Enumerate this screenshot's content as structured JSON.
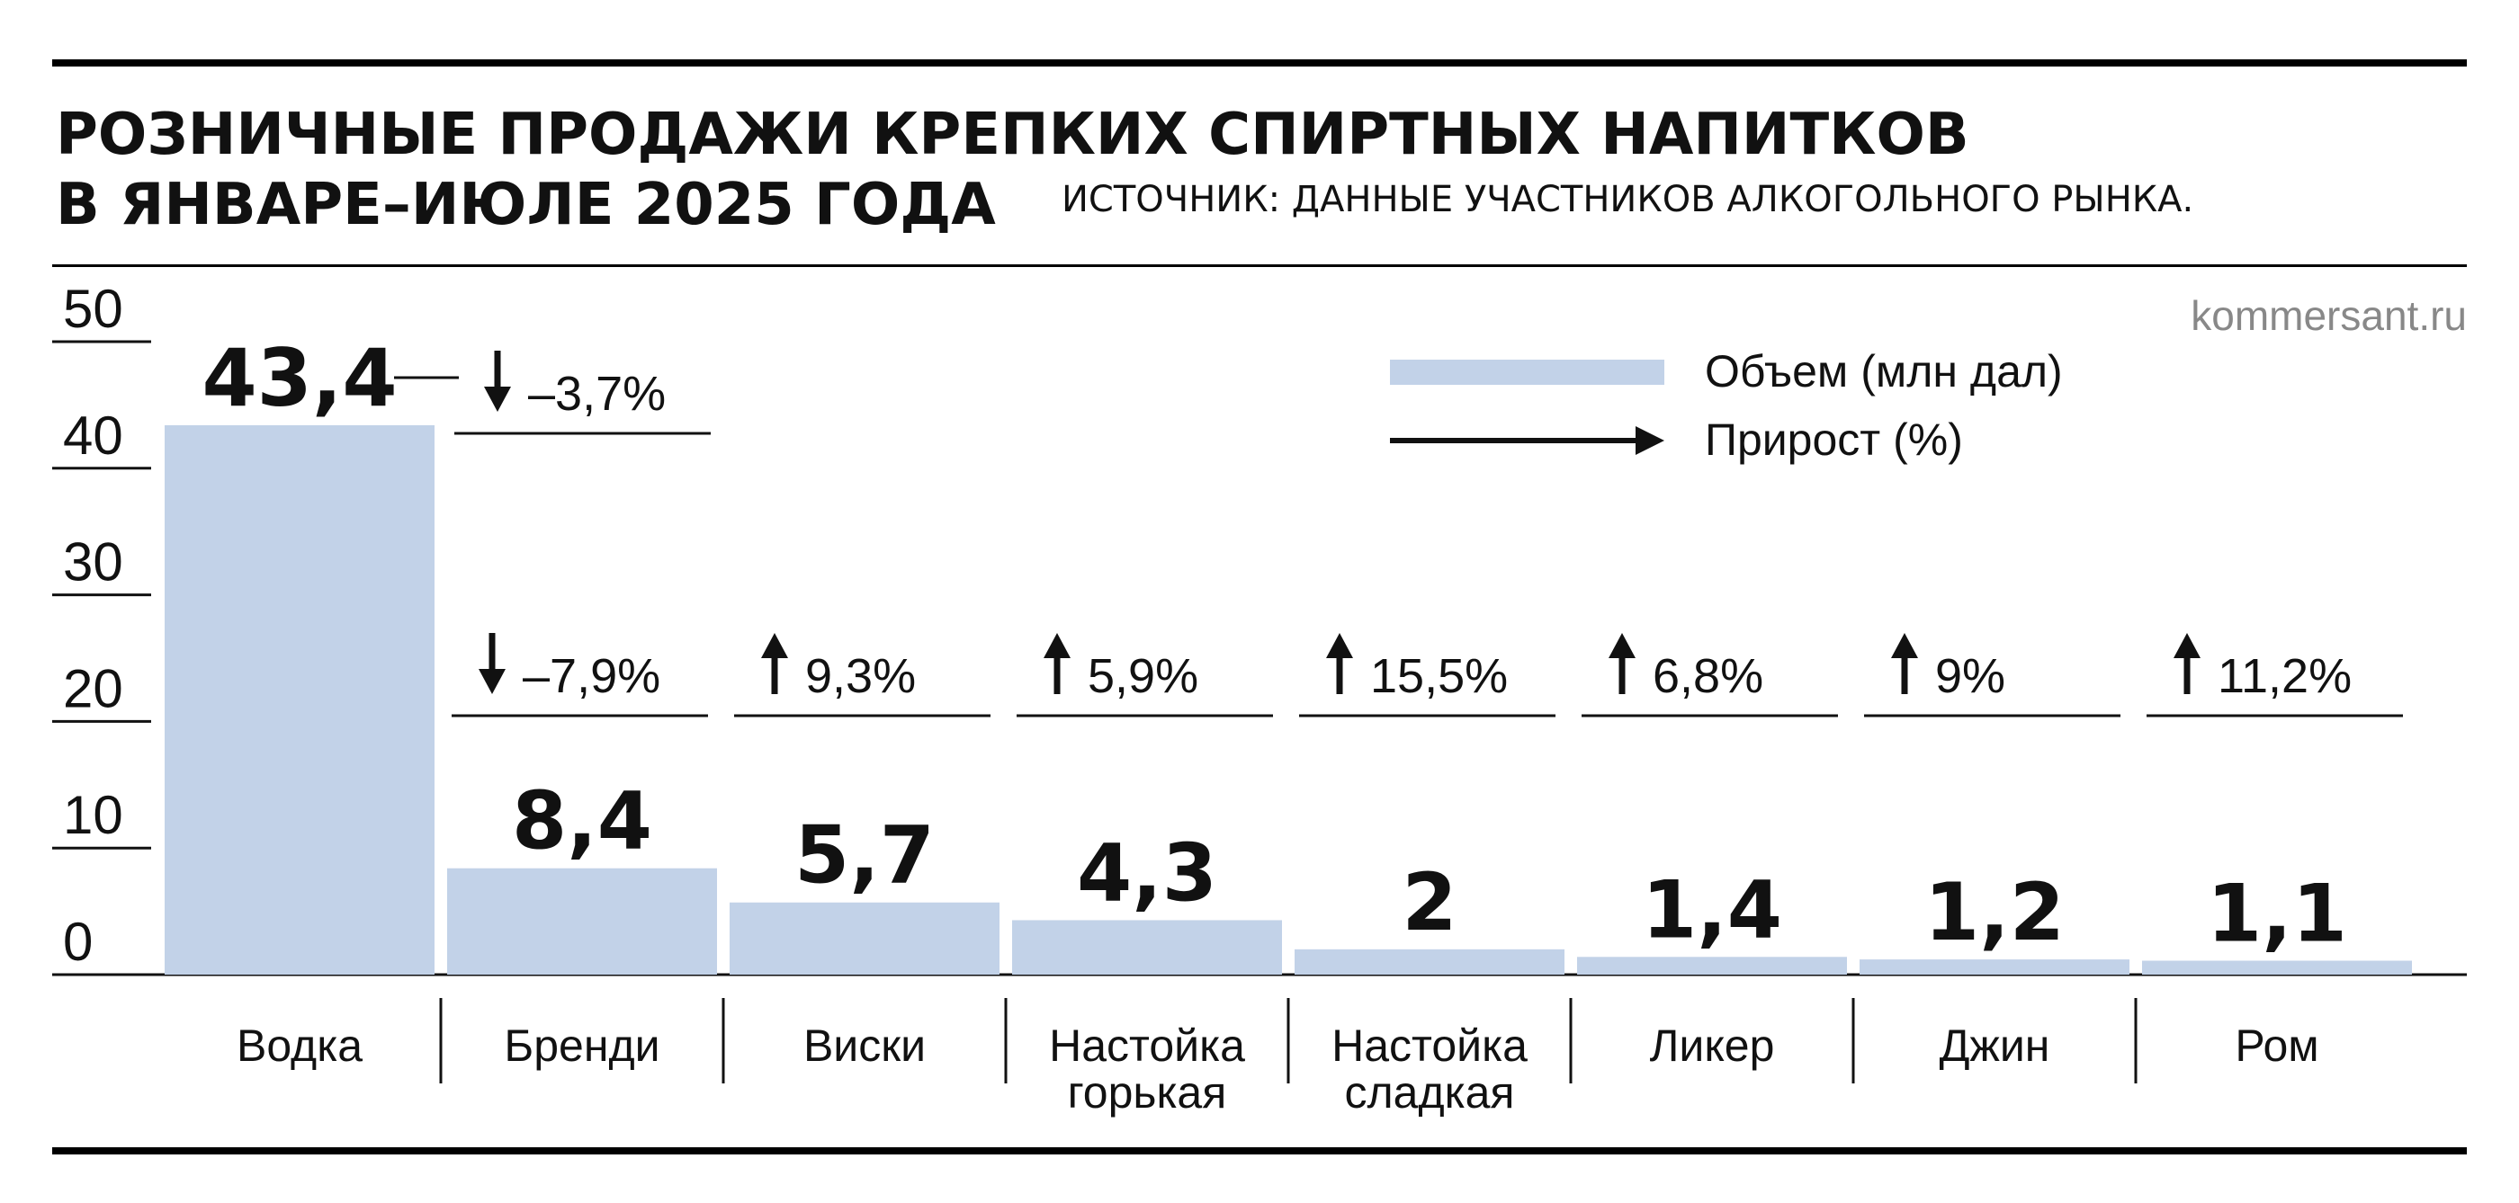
{
  "header": {
    "title_line1": "РОЗНИЧНЫЕ ПРОДАЖИ КРЕПКИХ СПИРТНЫХ НАПИТКОВ",
    "title_line2": "В ЯНВАРЕ–ИЮЛЕ 2025 ГОДА",
    "source": "ИСТОЧНИК: ДАННЫЕ УЧАСТНИКОВ АЛКОГОЛЬНОГО РЫНКА.",
    "site": "kommersant.ru"
  },
  "legend": {
    "volume_label": "Объем (млн дал)",
    "growth_label": "Прирост (%)"
  },
  "colors": {
    "bar": "#c2d2e8",
    "text": "#111111",
    "site": "#888888"
  },
  "chart_data": {
    "type": "bar",
    "categories": [
      [
        "Водка"
      ],
      [
        "Бренди"
      ],
      [
        "Виски"
      ],
      [
        "Настойка",
        "горькая"
      ],
      [
        "Настойка",
        "сладкая"
      ],
      [
        "Ликер"
      ],
      [
        "Джин"
      ],
      [
        "Ром"
      ]
    ],
    "values": [
      43.4,
      8.4,
      5.7,
      4.3,
      2,
      1.4,
      1.2,
      1.1
    ],
    "value_labels": [
      "43,4",
      "8,4",
      "5,7",
      "4,3",
      "2",
      "1,4",
      "1,2",
      "1,1"
    ],
    "growth": [
      {
        "label": "–3,7%",
        "direction": "down"
      },
      {
        "label": "–7,9%",
        "direction": "down"
      },
      {
        "label": "9,3%",
        "direction": "up"
      },
      {
        "label": "5,9%",
        "direction": "up"
      },
      {
        "label": "15,5%",
        "direction": "up"
      },
      {
        "label": "6,8%",
        "direction": "up"
      },
      {
        "label": "9%",
        "direction": "up"
      },
      {
        "label": "11,2%",
        "direction": "up"
      }
    ],
    "yticks": [
      0,
      10,
      20,
      30,
      40,
      50
    ],
    "ylim": [
      0,
      50
    ],
    "legend_position": "top-right",
    "grid": false
  }
}
